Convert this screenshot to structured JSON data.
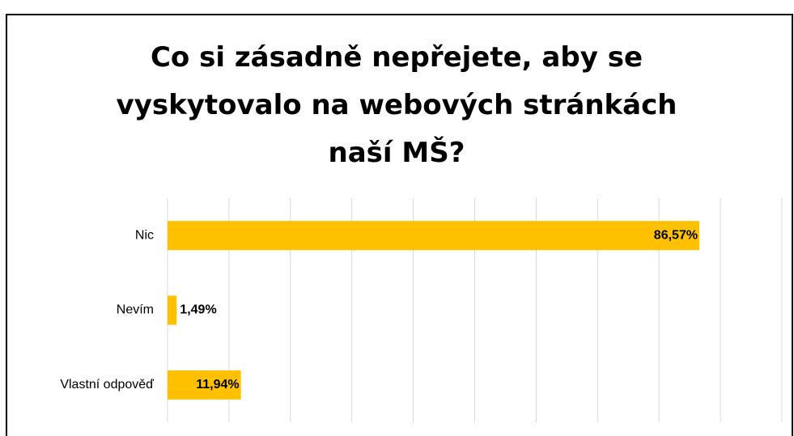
{
  "chart_data": {
    "type": "hbar",
    "title": "Co si zásadně nepřejete, aby se vyskytovalo na webových stránkách naší MŠ?",
    "categories": [
      "Nic",
      "Nevím",
      "Vlastní odpověď"
    ],
    "values": [
      86.57,
      1.49,
      11.94
    ],
    "value_labels": [
      "86,57%",
      "1,49%",
      "11,94%"
    ],
    "color": "#ffc000",
    "xlim": [
      0,
      100
    ],
    "xticks": [
      0,
      10,
      20,
      30,
      40,
      50,
      60,
      70,
      80,
      90,
      100
    ],
    "grid": true
  }
}
